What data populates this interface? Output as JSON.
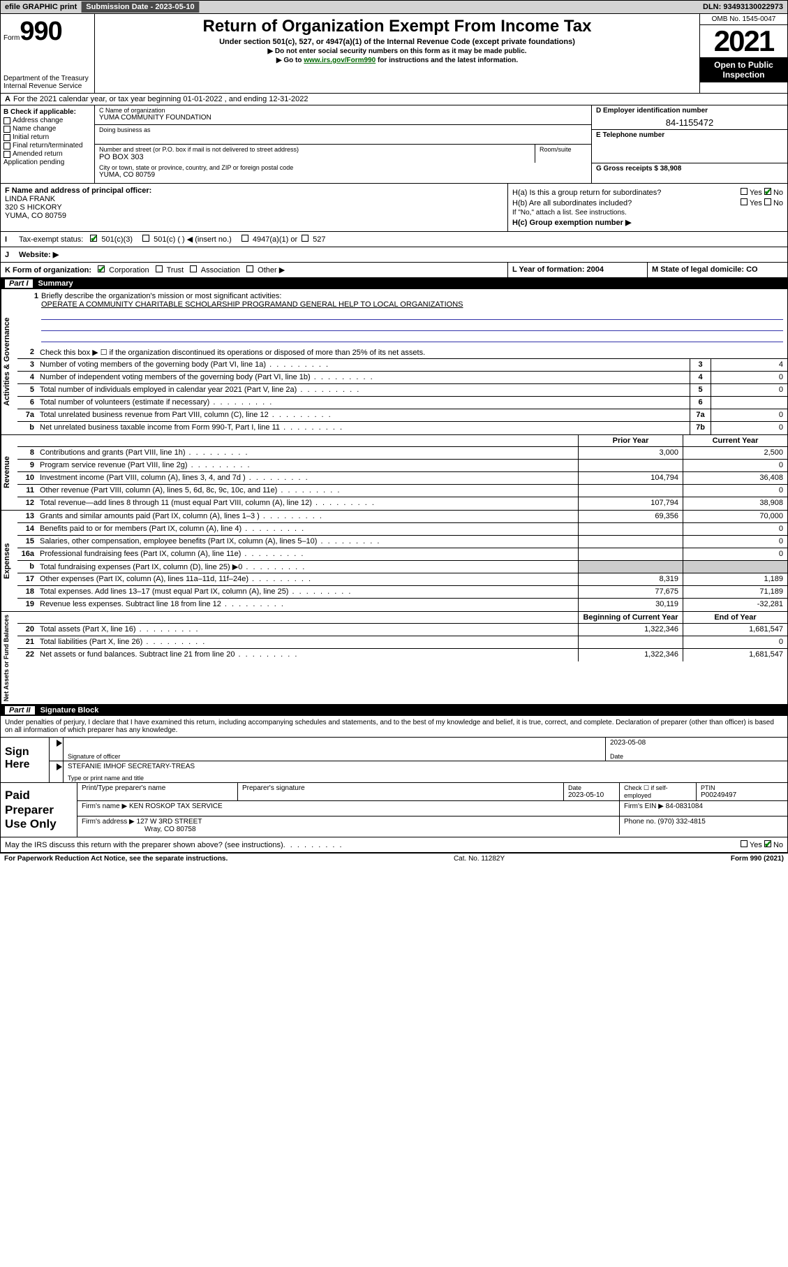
{
  "topbar": {
    "efile": "efile GRAPHIC print",
    "submission_label": "Submission Date - 2023-05-10",
    "dln": "DLN: 93493130022973"
  },
  "header": {
    "form_word": "Form",
    "form_num": "990",
    "dept": "Department of the Treasury\nInternal Revenue Service",
    "title": "Return of Organization Exempt From Income Tax",
    "sub": "Under section 501(c), 527, or 4947(a)(1) of the Internal Revenue Code (except private foundations)",
    "line1": "▶ Do not enter social security numbers on this form as it may be made public.",
    "line2_pre": "▶ Go to ",
    "line2_link": "www.irs.gov/Form990",
    "line2_post": " for instructions and the latest information.",
    "omb": "OMB No. 1545-0047",
    "year": "2021",
    "open_pub": "Open to Public Inspection"
  },
  "row_a": {
    "label": "A",
    "text": "For the 2021 calendar year, or tax year beginning 01-01-2022   , and ending 12-31-2022"
  },
  "section_b": {
    "label": "B Check if applicable:",
    "items": [
      "Address change",
      "Name change",
      "Initial return",
      "Final return/terminated",
      "Amended return",
      "Application pending"
    ]
  },
  "section_c": {
    "name_label": "C Name of organization",
    "name": "YUMA COMMUNITY FOUNDATION",
    "dba_label": "Doing business as",
    "street_label": "Number and street (or P.O. box if mail is not delivered to street address)",
    "room_label": "Room/suite",
    "street": "PO BOX 303",
    "city_label": "City or town, state or province, country, and ZIP or foreign postal code",
    "city": "YUMA, CO  80759"
  },
  "section_d": {
    "label": "D Employer identification number",
    "value": "84-1155472"
  },
  "section_e": {
    "label": "E Telephone number",
    "value": ""
  },
  "section_g": {
    "label": "G Gross receipts $ 38,908"
  },
  "section_f": {
    "label": "F  Name and address of principal officer:",
    "name": "LINDA FRANK",
    "street": "320 S HICKORY",
    "city": "YUMA, CO  80759"
  },
  "section_h": {
    "ha": "H(a)  Is this a group return for subordinates?",
    "hb": "H(b)  Are all subordinates included?",
    "hb_note": "If \"No,\" attach a list. See instructions.",
    "hc": "H(c)  Group exemption number ▶"
  },
  "section_i": {
    "label": "I",
    "text": "Tax-exempt status:",
    "opt1": "501(c)(3)",
    "opt2": "501(c) (  ) ◀ (insert no.)",
    "opt3": "4947(a)(1) or",
    "opt4": "527"
  },
  "section_j": {
    "label": "J",
    "text": "Website: ▶"
  },
  "section_k": {
    "label": "K Form of organization:",
    "opts": [
      "Corporation",
      "Trust",
      "Association",
      "Other ▶"
    ]
  },
  "section_l": {
    "label": "L Year of formation: 2004"
  },
  "section_m": {
    "label": "M State of legal domicile: CO"
  },
  "part1": {
    "num": "Part I",
    "title": "Summary"
  },
  "mission": {
    "num": "1",
    "label": "Briefly describe the organization's mission or most significant activities:",
    "text": "OPERATE A COMMUNITY CHARITABLE SCHOLARSHIP PROGRAMAND GENERAL HELP TO LOCAL ORGANIZATIONS"
  },
  "gov_rows": [
    {
      "n": "2",
      "t": "Check this box ▶ ☐  if the organization discontinued its operations or disposed of more than 25% of its net assets.",
      "box": "",
      "v": ""
    },
    {
      "n": "3",
      "t": "Number of voting members of the governing body (Part VI, line 1a)",
      "box": "3",
      "v": "4"
    },
    {
      "n": "4",
      "t": "Number of independent voting members of the governing body (Part VI, line 1b)",
      "box": "4",
      "v": "0"
    },
    {
      "n": "5",
      "t": "Total number of individuals employed in calendar year 2021 (Part V, line 2a)",
      "box": "5",
      "v": "0"
    },
    {
      "n": "6",
      "t": "Total number of volunteers (estimate if necessary)",
      "box": "6",
      "v": ""
    },
    {
      "n": "7a",
      "t": "Total unrelated business revenue from Part VIII, column (C), line 12",
      "box": "7a",
      "v": "0"
    },
    {
      "n": "b",
      "t": "Net unrelated business taxable income from Form 990-T, Part I, line 11",
      "box": "7b",
      "v": "0"
    }
  ],
  "col_headers": {
    "prior": "Prior Year",
    "current": "Current Year",
    "boy": "Beginning of Current Year",
    "eoy": "End of Year"
  },
  "rev_rows": [
    {
      "n": "8",
      "t": "Contributions and grants (Part VIII, line 1h)",
      "p": "3,000",
      "c": "2,500"
    },
    {
      "n": "9",
      "t": "Program service revenue (Part VIII, line 2g)",
      "p": "",
      "c": "0"
    },
    {
      "n": "10",
      "t": "Investment income (Part VIII, column (A), lines 3, 4, and 7d )",
      "p": "104,794",
      "c": "36,408"
    },
    {
      "n": "11",
      "t": "Other revenue (Part VIII, column (A), lines 5, 6d, 8c, 9c, 10c, and 11e)",
      "p": "",
      "c": "0"
    },
    {
      "n": "12",
      "t": "Total revenue—add lines 8 through 11 (must equal Part VIII, column (A), line 12)",
      "p": "107,794",
      "c": "38,908"
    }
  ],
  "exp_rows": [
    {
      "n": "13",
      "t": "Grants and similar amounts paid (Part IX, column (A), lines 1–3 )",
      "p": "69,356",
      "c": "70,000"
    },
    {
      "n": "14",
      "t": "Benefits paid to or for members (Part IX, column (A), line 4)",
      "p": "",
      "c": "0"
    },
    {
      "n": "15",
      "t": "Salaries, other compensation, employee benefits (Part IX, column (A), lines 5–10)",
      "p": "",
      "c": "0"
    },
    {
      "n": "16a",
      "t": "Professional fundraising fees (Part IX, column (A), line 11e)",
      "p": "",
      "c": "0"
    },
    {
      "n": "b",
      "t": "Total fundraising expenses (Part IX, column (D), line 25) ▶0",
      "p": "shade",
      "c": "shade"
    },
    {
      "n": "17",
      "t": "Other expenses (Part IX, column (A), lines 11a–11d, 11f–24e)",
      "p": "8,319",
      "c": "1,189"
    },
    {
      "n": "18",
      "t": "Total expenses. Add lines 13–17 (must equal Part IX, column (A), line 25)",
      "p": "77,675",
      "c": "71,189"
    },
    {
      "n": "19",
      "t": "Revenue less expenses. Subtract line 18 from line 12",
      "p": "30,119",
      "c": "-32,281"
    }
  ],
  "net_rows": [
    {
      "n": "20",
      "t": "Total assets (Part X, line 16)",
      "p": "1,322,346",
      "c": "1,681,547"
    },
    {
      "n": "21",
      "t": "Total liabilities (Part X, line 26)",
      "p": "",
      "c": "0"
    },
    {
      "n": "22",
      "t": "Net assets or fund balances. Subtract line 21 from line 20",
      "p": "1,322,346",
      "c": "1,681,547"
    }
  ],
  "vtabs": {
    "gov": "Activities & Governance",
    "rev": "Revenue",
    "exp": "Expenses",
    "net": "Net Assets or Fund Balances"
  },
  "part2": {
    "num": "Part II",
    "title": "Signature Block"
  },
  "penalty": "Under penalties of perjury, I declare that I have examined this return, including accompanying schedules and statements, and to the best of my knowledge and belief, it is true, correct, and complete. Declaration of preparer (other than officer) is based on all information of which preparer has any knowledge.",
  "sign": {
    "label": "Sign Here",
    "sig_label": "Signature of officer",
    "date_label": "Date",
    "date": "2023-05-08",
    "name_label": "Type or print name and title",
    "name": "STEFANIE IMHOF SECRETARY-TREAS"
  },
  "prep": {
    "label": "Paid Preparer Use Only",
    "h1": "Print/Type preparer's name",
    "h2": "Preparer's signature",
    "h3": "Date",
    "h3v": "2023-05-10",
    "h4": "Check ☐ if self-employed",
    "h5": "PTIN",
    "h5v": "P00249497",
    "firm_name_l": "Firm's name    ▶",
    "firm_name": "KEN ROSKOP TAX SERVICE",
    "firm_ein_l": "Firm's EIN ▶",
    "firm_ein": "84-0831084",
    "firm_addr_l": "Firm's address ▶",
    "firm_addr": "127 W 3RD STREET",
    "firm_city": "Wray, CO  80758",
    "phone_l": "Phone no.",
    "phone": "(970) 332-4815"
  },
  "may_irs": "May the IRS discuss this return with the preparer shown above? (see instructions)",
  "footer": {
    "left": "For Paperwork Reduction Act Notice, see the separate instructions.",
    "mid": "Cat. No. 11282Y",
    "right": "Form 990 (2021)"
  },
  "yes": "Yes",
  "no": "No"
}
